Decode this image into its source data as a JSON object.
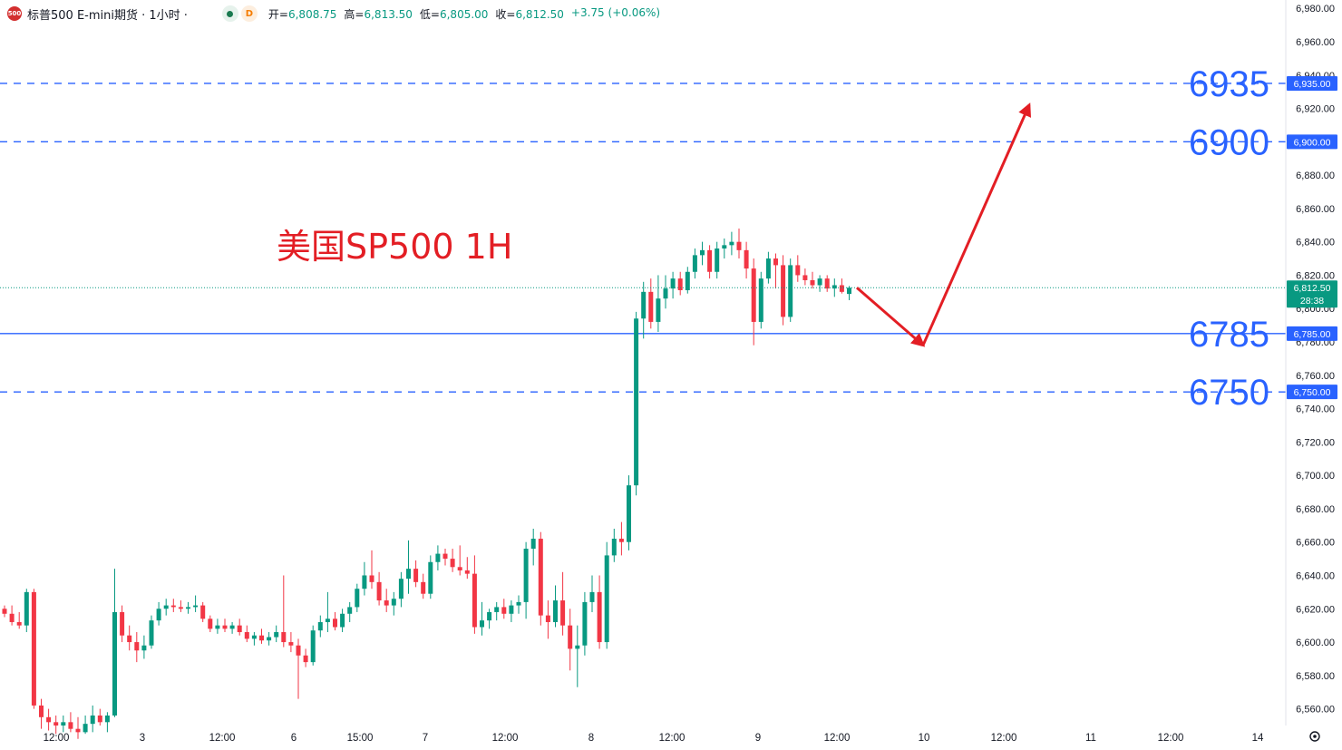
{
  "header": {
    "badge": "500",
    "title": "标普500 E-mini期货 · 1小时 ·",
    "status_dot_letter": "D",
    "open_label": "开=",
    "open_value": "6,808.75",
    "high_label": "高=",
    "high_value": "6,813.50",
    "low_label": "低=",
    "low_value": "6,805.00",
    "close_label": "收=",
    "close_value": "6,812.50",
    "change": "+3.75 (+0.06%)"
  },
  "chart_data": {
    "type": "candlestick",
    "title": "美国SP500 1H",
    "y_axis_range": [
      6550,
      6985
    ],
    "y_ticks": [
      6560,
      6580,
      6600,
      6620,
      6640,
      6660,
      6680,
      6700,
      6720,
      6740,
      6760,
      6780,
      6800,
      6820,
      6840,
      6860,
      6880,
      6900,
      6920,
      6940,
      6960,
      6980
    ],
    "y_tick_labels": [
      "6,560.00",
      "6,580.00",
      "6,600.00",
      "6,620.00",
      "6,640.00",
      "6,660.00",
      "6,680.00",
      "6,700.00",
      "6,720.00",
      "6,740.00",
      "6,760.00",
      "6,780.00",
      "6,800.00",
      "6,820.00",
      "6,840.00",
      "6,860.00",
      "6,880.00",
      "6,900.00",
      "6,920.00",
      "6,940.00",
      "6,960.00",
      "6,980.00"
    ],
    "x_tick_labels": [
      "12:00",
      "3",
      "12:00",
      "6",
      "15:00",
      "7",
      "12:00",
      "8",
      "12:00",
      "9",
      "12:00",
      "10",
      "12:00",
      "11",
      "12:00",
      "14"
    ],
    "colors": {
      "up": "#089981",
      "down": "#f23645",
      "level": "#2962ff",
      "annotation": "#e31e24"
    },
    "levels": [
      {
        "label": "6935",
        "value": 6935,
        "axis_tag": "6,935.00",
        "style": "dashed"
      },
      {
        "label": "6900",
        "value": 6900,
        "axis_tag": "6,900.00",
        "style": "dashed"
      },
      {
        "label": "6785",
        "value": 6785,
        "axis_tag": "6,785.00",
        "style": "solid"
      },
      {
        "label": "6750",
        "value": 6750,
        "axis_tag": "6,750.00",
        "style": "dashed"
      }
    ],
    "last_price": {
      "value": 6812.5,
      "label": "6,812.50",
      "countdown": "28:38"
    },
    "projection": [
      6812.5,
      6778,
      6922
    ],
    "candles": [
      [
        6620,
        6622,
        6615,
        6617
      ],
      [
        6617,
        6622,
        6610,
        6612
      ],
      [
        6612,
        6618,
        6608,
        6610
      ],
      [
        6610,
        6632,
        6606,
        6630
      ],
      [
        6630,
        6632,
        6560,
        6562
      ],
      [
        6562,
        6566,
        6548,
        6555
      ],
      [
        6555,
        6560,
        6547,
        6552
      ],
      [
        6552,
        6556,
        6545,
        6550
      ],
      [
        6550,
        6556,
        6546,
        6552
      ],
      [
        6552,
        6558,
        6546,
        6548
      ],
      [
        6548,
        6555,
        6542,
        6546
      ],
      [
        6546,
        6556,
        6545,
        6551
      ],
      [
        6551,
        6562,
        6546,
        6556
      ],
      [
        6556,
        6560,
        6550,
        6552
      ],
      [
        6552,
        6558,
        6546,
        6556
      ],
      [
        6556,
        6644,
        6555,
        6618
      ],
      [
        6618,
        6622,
        6600,
        6604
      ],
      [
        6604,
        6610,
        6595,
        6600
      ],
      [
        6600,
        6606,
        6588,
        6595
      ],
      [
        6595,
        6604,
        6590,
        6598
      ],
      [
        6598,
        6616,
        6596,
        6613
      ],
      [
        6613,
        6624,
        6610,
        6620
      ],
      [
        6620,
        6626,
        6616,
        6622
      ],
      [
        6622,
        6626,
        6618,
        6621
      ],
      [
        6621,
        6625,
        6618,
        6620
      ],
      [
        6620,
        6624,
        6617,
        6621
      ],
      [
        6621,
        6628,
        6618,
        6622
      ],
      [
        6622,
        6624,
        6612,
        6614
      ],
      [
        6614,
        6616,
        6606,
        6608
      ],
      [
        6608,
        6614,
        6605,
        6610
      ],
      [
        6610,
        6614,
        6606,
        6608
      ],
      [
        6608,
        6612,
        6605,
        6610
      ],
      [
        6610,
        6614,
        6604,
        6606
      ],
      [
        6606,
        6610,
        6600,
        6602
      ],
      [
        6602,
        6606,
        6598,
        6604
      ],
      [
        6604,
        6608,
        6599,
        6601
      ],
      [
        6601,
        6606,
        6598,
        6603
      ],
      [
        6603,
        6610,
        6600,
        6606
      ],
      [
        6606,
        6640,
        6597,
        6600
      ],
      [
        6600,
        6606,
        6594,
        6598
      ],
      [
        6598,
        6602,
        6566,
        6592
      ],
      [
        6592,
        6596,
        6585,
        6588
      ],
      [
        6588,
        6610,
        6586,
        6607
      ],
      [
        6607,
        6616,
        6603,
        6612
      ],
      [
        6612,
        6630,
        6606,
        6614
      ],
      [
        6614,
        6618,
        6607,
        6609
      ],
      [
        6609,
        6620,
        6606,
        6617
      ],
      [
        6617,
        6624,
        6612,
        6621
      ],
      [
        6621,
        6635,
        6618,
        6632
      ],
      [
        6632,
        6648,
        6628,
        6640
      ],
      [
        6640,
        6655,
        6632,
        6636
      ],
      [
        6636,
        6642,
        6622,
        6625
      ],
      [
        6625,
        6632,
        6618,
        6622
      ],
      [
        6622,
        6630,
        6616,
        6626
      ],
      [
        6626,
        6642,
        6621,
        6638
      ],
      [
        6638,
        6661,
        6629,
        6644
      ],
      [
        6644,
        6649,
        6633,
        6636
      ],
      [
        6636,
        6641,
        6626,
        6629
      ],
      [
        6629,
        6652,
        6626,
        6648
      ],
      [
        6648,
        6658,
        6643,
        6653
      ],
      [
        6653,
        6656,
        6646,
        6650
      ],
      [
        6650,
        6656,
        6642,
        6645
      ],
      [
        6645,
        6658,
        6640,
        6643
      ],
      [
        6643,
        6651,
        6638,
        6641
      ],
      [
        6641,
        6652,
        6605,
        6609
      ],
      [
        6609,
        6624,
        6604,
        6613
      ],
      [
        6613,
        6620,
        6608,
        6618
      ],
      [
        6618,
        6624,
        6613,
        6621
      ],
      [
        6621,
        6626,
        6614,
        6617
      ],
      [
        6617,
        6625,
        6612,
        6622
      ],
      [
        6622,
        6628,
        6617,
        6624
      ],
      [
        6624,
        6660,
        6614,
        6656
      ],
      [
        6656,
        6668,
        6646,
        6662
      ],
      [
        6662,
        6666,
        6610,
        6616
      ],
      [
        6616,
        6625,
        6602,
        6612
      ],
      [
        6612,
        6634,
        6609,
        6625
      ],
      [
        6625,
        6642,
        6604,
        6610
      ],
      [
        6610,
        6620,
        6583,
        6596
      ],
      [
        6596,
        6610,
        6573,
        6598
      ],
      [
        6598,
        6630,
        6592,
        6624
      ],
      [
        6624,
        6640,
        6618,
        6630
      ],
      [
        6630,
        6640,
        6596,
        6600
      ],
      [
        6600,
        6660,
        6596,
        6652
      ],
      [
        6652,
        6668,
        6648,
        6662
      ],
      [
        6662,
        6672,
        6652,
        6660
      ],
      [
        6660,
        6700,
        6655,
        6694
      ],
      [
        6694,
        6798,
        6688,
        6794
      ],
      [
        6794,
        6816,
        6782,
        6810
      ],
      [
        6810,
        6818,
        6788,
        6792
      ],
      [
        6792,
        6820,
        6786,
        6806
      ],
      [
        6806,
        6820,
        6800,
        6812
      ],
      [
        6812,
        6822,
        6806,
        6818
      ],
      [
        6818,
        6822,
        6808,
        6811
      ],
      [
        6811,
        6825,
        6809,
        6822
      ],
      [
        6822,
        6836,
        6818,
        6832
      ],
      [
        6832,
        6840,
        6826,
        6835
      ],
      [
        6835,
        6838,
        6818,
        6822
      ],
      [
        6822,
        6840,
        6818,
        6836
      ],
      [
        6836,
        6842,
        6830,
        6838
      ],
      [
        6838,
        6846,
        6832,
        6840
      ],
      [
        6840,
        6848,
        6830,
        6835
      ],
      [
        6835,
        6840,
        6818,
        6824
      ],
      [
        6824,
        6830,
        6778,
        6792
      ],
      [
        6792,
        6822,
        6788,
        6818
      ],
      [
        6818,
        6834,
        6815,
        6830
      ],
      [
        6830,
        6833,
        6812,
        6826
      ],
      [
        6826,
        6832,
        6790,
        6795
      ],
      [
        6795,
        6830,
        6792,
        6826
      ],
      [
        6826,
        6832,
        6816,
        6820
      ],
      [
        6820,
        6824,
        6814,
        6817
      ],
      [
        6817,
        6822,
        6812,
        6814
      ],
      [
        6814,
        6820,
        6810,
        6818
      ],
      [
        6818,
        6820,
        6810,
        6812
      ],
      [
        6812,
        6818,
        6807,
        6814
      ],
      [
        6814,
        6818,
        6809,
        6810
      ],
      [
        6808.75,
        6813.5,
        6805,
        6812.5
      ]
    ]
  }
}
